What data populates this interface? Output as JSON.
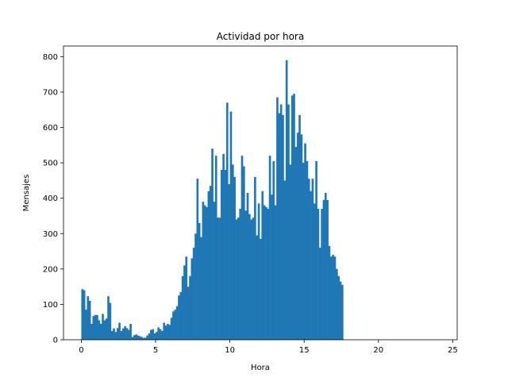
{
  "chart_data": {
    "type": "bar",
    "title": "Actividad por hora",
    "xlabel": "Hora",
    "ylabel": "Mensajes",
    "xlim": [
      -1.2,
      25.3
    ],
    "ylim": [
      0,
      830
    ],
    "bin_width": 0.125,
    "x_start": 0.0,
    "xticks": [
      0,
      5,
      10,
      15,
      20,
      25
    ],
    "yticks": [
      0,
      100,
      200,
      300,
      400,
      500,
      600,
      700,
      800
    ],
    "grid": false,
    "bar_color": "#1f77b4",
    "values": [
      143,
      140,
      85,
      123,
      110,
      45,
      67,
      70,
      70,
      55,
      45,
      73,
      55,
      60,
      123,
      104,
      25,
      32,
      22,
      33,
      48,
      25,
      32,
      38,
      33,
      28,
      45,
      8,
      13,
      15,
      12,
      10,
      8,
      5,
      6,
      12,
      18,
      28,
      30,
      18,
      22,
      35,
      30,
      25,
      48,
      40,
      45,
      42,
      62,
      80,
      85,
      95,
      125,
      135,
      180,
      210,
      235,
      150,
      180,
      230,
      260,
      300,
      455,
      330,
      290,
      390,
      380,
      375,
      420,
      435,
      540,
      390,
      520,
      345,
      345,
      480,
      525,
      480,
      670,
      440,
      645,
      495,
      460,
      340,
      345,
      370,
      520,
      490,
      365,
      415,
      355,
      340,
      345,
      460,
      295,
      385,
      285,
      420,
      380,
      375,
      370,
      520,
      410,
      505,
      380,
      685,
      640,
      665,
      635,
      450,
      790,
      665,
      495,
      690,
      695,
      545,
      585,
      635,
      580,
      500,
      555,
      505,
      455,
      420,
      455,
      385,
      505,
      370,
      260,
      370,
      395,
      415,
      395,
      265,
      235,
      240,
      235,
      200,
      180,
      165,
      155
    ]
  }
}
